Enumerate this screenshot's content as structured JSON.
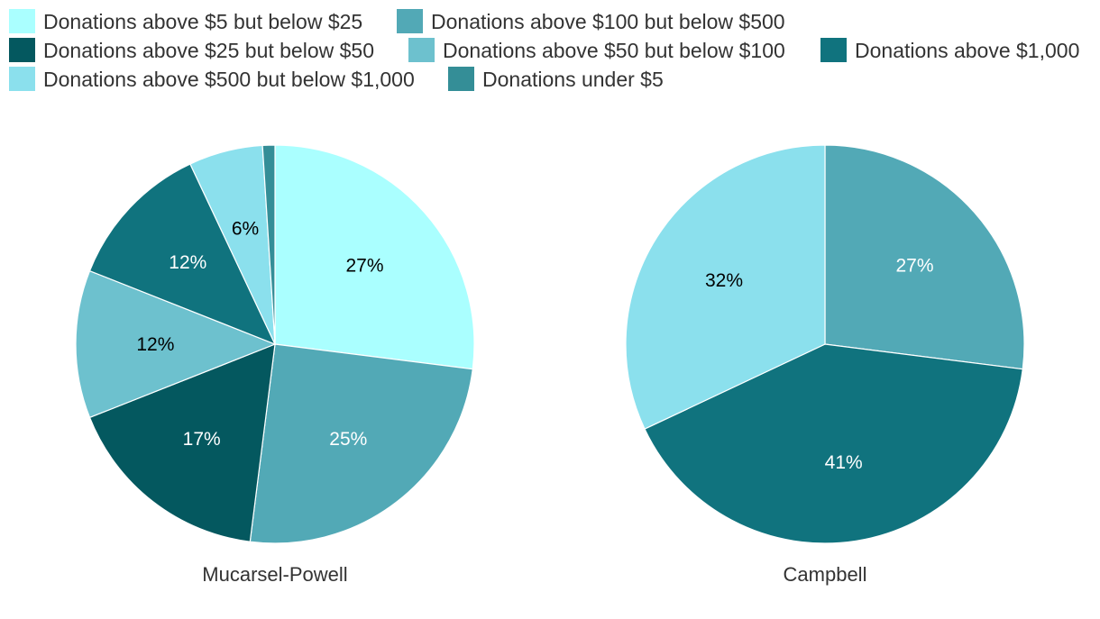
{
  "chart_data": {
    "type": "pie",
    "legend_position": "top",
    "categories": [
      {
        "name": "Donations above $5 but below $25",
        "color": "#aaffff",
        "label_color": "#000000"
      },
      {
        "name": "Donations above $100 but below $500",
        "color": "#52a9b6",
        "label_color": "#ffffff"
      },
      {
        "name": "Donations above $25 but below $50",
        "color": "#04585f",
        "label_color": "#ffffff"
      },
      {
        "name": "Donations above $50 but below $100",
        "color": "#6dc1ce",
        "label_color": "#000000"
      },
      {
        "name": "Donations above $1,000",
        "color": "#10737e",
        "label_color": "#ffffff"
      },
      {
        "name": "Donations above $500 but below $1,000",
        "color": "#8be0ed",
        "label_color": "#000000"
      },
      {
        "name": "Donations under $5",
        "color": "#348e97",
        "label_color": "#ffffff"
      }
    ],
    "pies": [
      {
        "title": "Mucarsel-Powell",
        "slices": [
          {
            "category": "Donations above $5 but below $25",
            "value": 27,
            "label": "27%"
          },
          {
            "category": "Donations above $100 but below $500",
            "value": 25,
            "label": "25%"
          },
          {
            "category": "Donations above $25 but below $50",
            "value": 17,
            "label": "17%"
          },
          {
            "category": "Donations above $50 but below $100",
            "value": 12,
            "label": "12%"
          },
          {
            "category": "Donations above $1,000",
            "value": 12,
            "label": "12%"
          },
          {
            "category": "Donations above $500 but below $1,000",
            "value": 6,
            "label": "6%"
          },
          {
            "category": "Donations under $5",
            "value": 1,
            "label": ""
          }
        ]
      },
      {
        "title": "Campbell",
        "slices": [
          {
            "category": "Donations above $100 but below $500",
            "value": 27,
            "label": "27%"
          },
          {
            "category": "Donations above $1,000",
            "value": 41,
            "label": "41%"
          },
          {
            "category": "Donations above $500 but below $1,000",
            "value": 32,
            "label": "32%"
          }
        ]
      }
    ]
  }
}
